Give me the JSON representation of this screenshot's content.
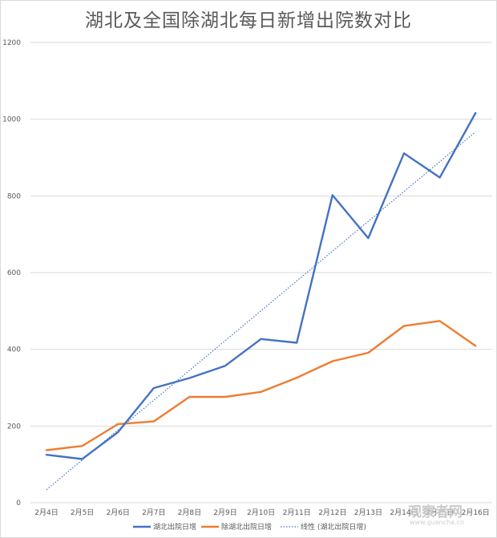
{
  "chart_data": {
    "type": "line",
    "title": "湖北及全国除湖北每日新增出院数对比",
    "categories": [
      "2月4日",
      "2月5日",
      "2月6日",
      "2月7日",
      "2月8日",
      "2月9日",
      "2月10日",
      "2月11日",
      "2月12日",
      "2月13日",
      "2月14日",
      "2月15日",
      "2月16日"
    ],
    "series": [
      {
        "name": "湖北出院日增",
        "color": "#4472c4",
        "values": [
          125,
          114,
          184,
          299,
          325,
          357,
          427,
          417,
          802,
          690,
          911,
          848,
          1016
        ]
      },
      {
        "name": "除湖北出院日增",
        "color": "#ed7d31",
        "values": [
          137,
          148,
          205,
          212,
          276,
          276,
          289,
          326,
          369,
          391,
          461,
          474,
          409
        ]
      }
    ],
    "trendline": {
      "name": "线性 (湖北出院日增)",
      "color": "#4472c4",
      "start": 34,
      "end": 967
    },
    "ylim": [
      0,
      1200
    ],
    "yticks": [
      "0",
      "200",
      "400",
      "600",
      "800",
      "1000",
      "1200"
    ],
    "grid": true,
    "legend": "bottom",
    "xlabel": "",
    "ylabel": ""
  },
  "watermark": {
    "main": "观察者网",
    "sub": "www.guancha.cn"
  }
}
